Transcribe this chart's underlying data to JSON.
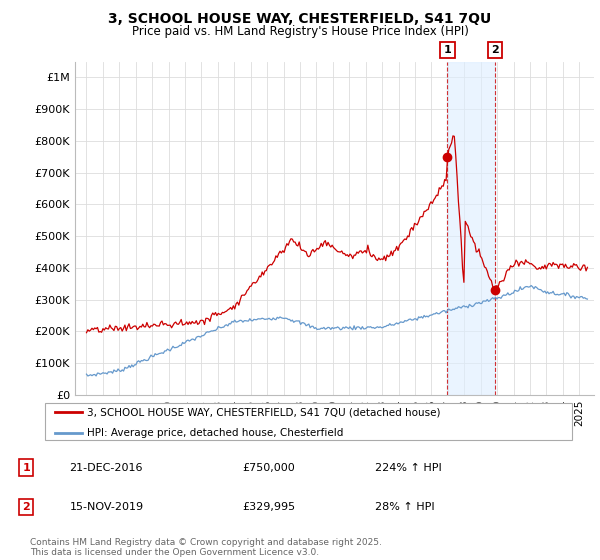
{
  "title": "3, SCHOOL HOUSE WAY, CHESTERFIELD, S41 7QU",
  "subtitle": "Price paid vs. HM Land Registry's House Price Index (HPI)",
  "ylabel_ticks": [
    "£0",
    "£100K",
    "£200K",
    "£300K",
    "£400K",
    "£500K",
    "£600K",
    "£700K",
    "£800K",
    "£900K",
    "£1M"
  ],
  "ytick_values": [
    0,
    100000,
    200000,
    300000,
    400000,
    500000,
    600000,
    700000,
    800000,
    900000,
    1000000
  ],
  "ylim": [
    0,
    1050000
  ],
  "transaction1": {
    "date": "21-DEC-2016",
    "price": 750000,
    "pct": "224%",
    "direction": "↑",
    "label": "1",
    "x": 2016.97
  },
  "transaction2": {
    "date": "15-NOV-2019",
    "price": 329995,
    "pct": "28%",
    "direction": "↑",
    "label": "2",
    "x": 2019.87
  },
  "legend_line1": "3, SCHOOL HOUSE WAY, CHESTERFIELD, S41 7QU (detached house)",
  "legend_line2": "HPI: Average price, detached house, Chesterfield",
  "footer": "Contains HM Land Registry data © Crown copyright and database right 2025.\nThis data is licensed under the Open Government Licence v3.0.",
  "line_color_red": "#cc0000",
  "line_color_blue": "#6699cc",
  "bg_color": "#ffffff",
  "grid_color": "#dddddd",
  "marker_box_color": "#cc0000",
  "vline_color": "#cc0000",
  "span_color": "#ddeeff"
}
